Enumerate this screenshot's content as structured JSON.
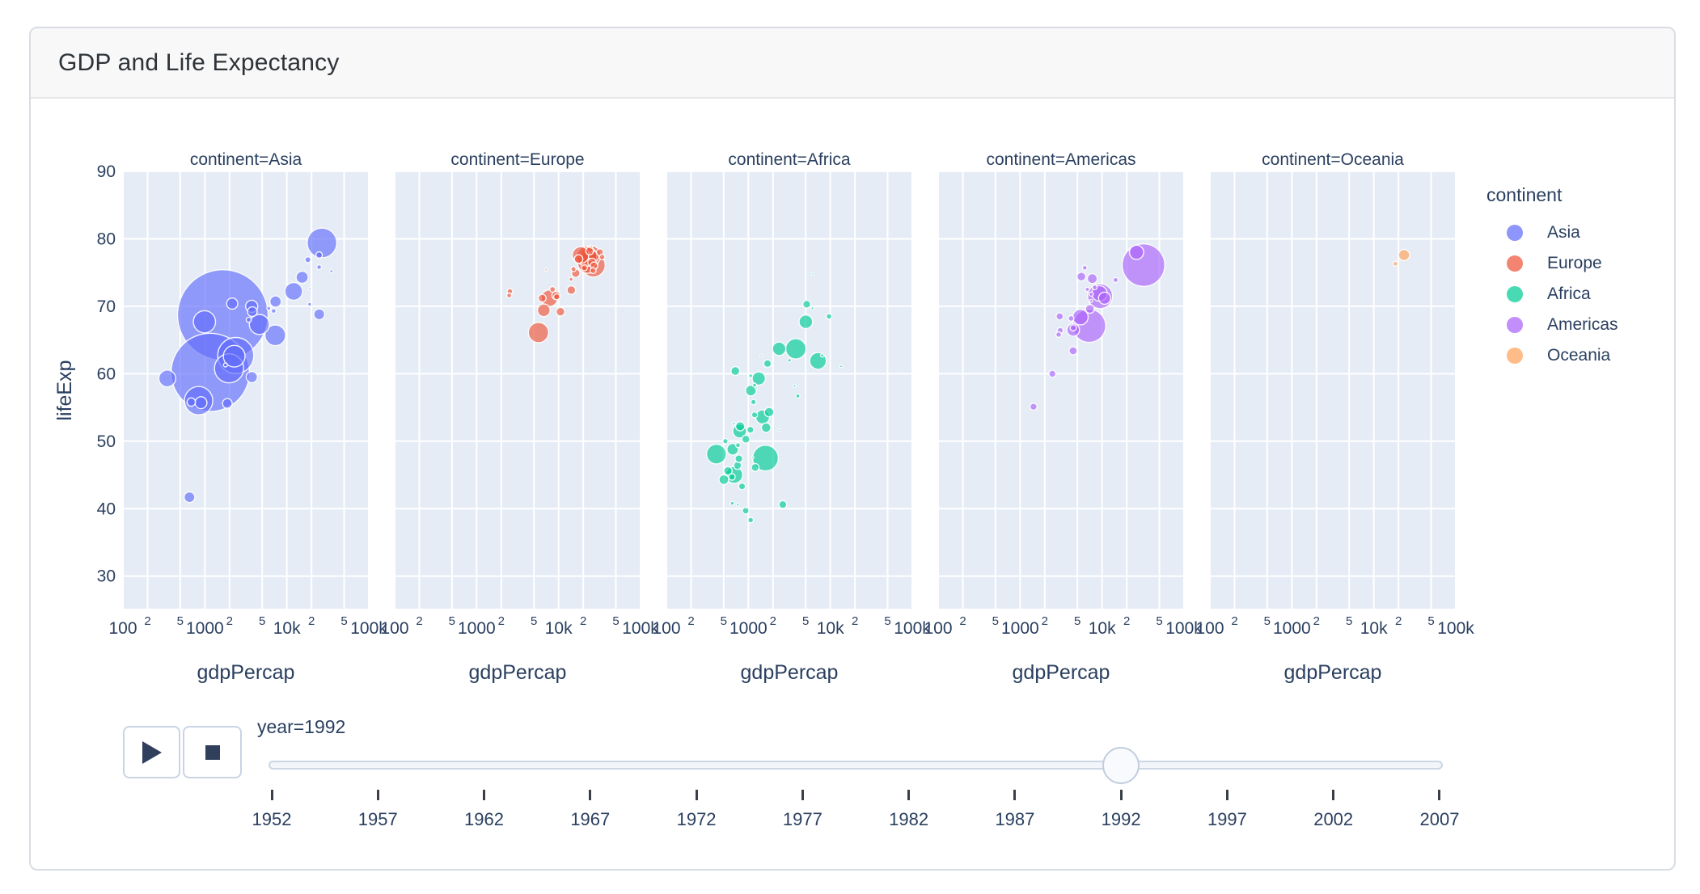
{
  "header": {
    "title": "GDP and Life Expectancy"
  },
  "legend": {
    "title": "continent",
    "items": [
      {
        "label": "Asia",
        "color": "#636EFA"
      },
      {
        "label": "Europe",
        "color": "#EF553B"
      },
      {
        "label": "Africa",
        "color": "#00CC96"
      },
      {
        "label": "Americas",
        "color": "#AB63FA"
      },
      {
        "label": "Oceania",
        "color": "#FFA15A"
      }
    ]
  },
  "controls": {
    "play_icon": "play-icon",
    "stop_icon": "stop-icon"
  },
  "slider": {
    "current_label": "year=1992",
    "current_year": 1992,
    "years": [
      1952,
      1957,
      1962,
      1967,
      1972,
      1977,
      1982,
      1987,
      1992,
      1997,
      2002,
      2007
    ]
  },
  "chart_data": {
    "type": "scatter",
    "title": "GDP and Life Expectancy",
    "frame_label": "year=1992",
    "facet_by": "continent",
    "size_by": "pop_millions",
    "x_label": "gdpPercap",
    "y_label": "lifeExp",
    "x_scale": "log",
    "x_range": [
      100,
      100000
    ],
    "y_range": [
      25,
      90
    ],
    "y_ticks": [
      30,
      40,
      50,
      60,
      70,
      80,
      90
    ],
    "x_ticks_major": [
      {
        "v": 100,
        "label": "100"
      },
      {
        "v": 1000,
        "label": "1000"
      },
      {
        "v": 10000,
        "label": "10k"
      },
      {
        "v": 100000,
        "label": "100k"
      }
    ],
    "x_ticks_minor": [
      {
        "v": 200,
        "label": "2"
      },
      {
        "v": 500,
        "label": "5"
      },
      {
        "v": 2000,
        "label": "2"
      },
      {
        "v": 5000,
        "label": "5"
      },
      {
        "v": 20000,
        "label": "2"
      },
      {
        "v": 50000,
        "label": "5"
      }
    ],
    "gridlines_x": [
      100,
      200,
      500,
      1000,
      2000,
      5000,
      10000,
      20000,
      50000,
      100000
    ],
    "grid": true,
    "legend_position": "right",
    "facets": [
      {
        "title": "continent=Asia",
        "series": "Asia"
      },
      {
        "title": "continent=Europe",
        "series": "Europe"
      },
      {
        "title": "continent=Africa",
        "series": "Africa"
      },
      {
        "title": "continent=Americas",
        "series": "Americas"
      },
      {
        "title": "continent=Oceania",
        "series": "Oceania"
      }
    ],
    "point_format": [
      "gdpPercap",
      "lifeExp",
      "pop_millions"
    ],
    "series": [
      {
        "name": "Asia",
        "color": "#636EFA",
        "points": [
          [
            649,
            41.7,
            16.3
          ],
          [
            19036,
            72.6,
            0.5
          ],
          [
            838,
            56.0,
            113.7
          ],
          [
            682,
            55.8,
            10.2
          ],
          [
            1656,
            68.7,
            1165.0
          ],
          [
            24757,
            77.6,
            5.8
          ],
          [
            1164,
            60.2,
            872.0
          ],
          [
            2383,
            62.7,
            184.8
          ],
          [
            7235,
            65.7,
            60.4
          ],
          [
            3745,
            59.5,
            17.9
          ],
          [
            18051,
            76.9,
            4.9
          ],
          [
            26825,
            79.4,
            124.3
          ],
          [
            3431,
            68.0,
            3.9
          ],
          [
            3726,
            70.0,
            20.7
          ],
          [
            12104,
            72.2,
            43.8
          ],
          [
            34933,
            75.2,
            1.4
          ],
          [
            6890,
            69.3,
            3.2
          ],
          [
            7277,
            70.7,
            18.3
          ],
          [
            1785,
            61.3,
            2.3
          ],
          [
            347,
            59.3,
            40.5
          ],
          [
            897,
            55.7,
            20.3
          ],
          [
            18955,
            70.3,
            1.9
          ],
          [
            1972,
            60.8,
            120.1
          ],
          [
            2280,
            62.6,
            67.2
          ],
          [
            24824,
            68.8,
            16.9
          ],
          [
            24770,
            75.8,
            3.2
          ],
          [
            2154,
            70.4,
            17.6
          ],
          [
            3795,
            69.2,
            13.2
          ],
          [
            15363,
            74.3,
            20.7
          ],
          [
            4617,
            67.3,
            56.7
          ],
          [
            989,
            67.7,
            69.9
          ],
          [
            6017,
            69.7,
            2.1
          ],
          [
            1879,
            55.6,
            13.4
          ]
        ]
      },
      {
        "name": "Europe",
        "color": "#EF553B",
        "points": [
          [
            2497,
            71.6,
            3.3
          ],
          [
            27042,
            76.0,
            7.9
          ],
          [
            25576,
            76.5,
            10.0
          ],
          [
            2547,
            72.2,
            4.3
          ],
          [
            6303,
            71.2,
            8.7
          ],
          [
            8448,
            72.5,
            4.5
          ],
          [
            14297,
            72.4,
            10.3
          ],
          [
            26407,
            75.3,
            5.2
          ],
          [
            20647,
            75.7,
            5.0
          ],
          [
            24704,
            77.5,
            57.4
          ],
          [
            26505,
            76.1,
            80.6
          ],
          [
            17541,
            77.0,
            10.3
          ],
          [
            10536,
            69.2,
            10.3
          ],
          [
            25144,
            78.8,
            0.3
          ],
          [
            15215,
            75.5,
            3.6
          ],
          [
            22014,
            77.4,
            56.8
          ],
          [
            7003,
            75.4,
            0.6
          ],
          [
            26791,
            77.4,
            15.2
          ],
          [
            33965,
            77.3,
            4.3
          ],
          [
            7739,
            71.2,
            38.4
          ],
          [
            16207,
            74.9,
            9.9
          ],
          [
            6598,
            69.4,
            22.8
          ],
          [
            9325,
            71.6,
            9.8
          ],
          [
            9498,
            71.4,
            5.3
          ],
          [
            14214,
            74.0,
            2.0
          ],
          [
            18603,
            77.6,
            39.5
          ],
          [
            23880,
            78.2,
            8.7
          ],
          [
            31871,
            78.0,
            6.9
          ],
          [
            5678,
            66.1,
            58.2
          ],
          [
            22705,
            76.4,
            57.9
          ]
        ]
      },
      {
        "name": "Africa",
        "color": "#00CC96",
        "points": [
          [
            5023,
            67.7,
            26.3
          ],
          [
            2628,
            40.6,
            8.7
          ],
          [
            1191,
            53.9,
            5.0
          ],
          [
            7954,
            62.7,
            1.3
          ],
          [
            931,
            50.3,
            8.9
          ],
          [
            632,
            44.7,
            5.8
          ],
          [
            1793,
            54.3,
            12.5
          ],
          [
            747,
            49.4,
            3.3
          ],
          [
            1058,
            51.7,
            6.6
          ],
          [
            1246,
            57.9,
            0.5
          ],
          [
            672,
            45.0,
            41.3
          ],
          [
            4016,
            56.7,
            2.4
          ],
          [
            1648,
            52.0,
            12.8
          ],
          [
            2377,
            51.6,
            0.4
          ],
          [
            3794,
            63.7,
            59.4
          ],
          [
            1132,
            47.6,
            0.4
          ],
          [
            525,
            50.0,
            3.7
          ],
          [
            407,
            48.1,
            55.1
          ],
          [
            13522,
            61.1,
            1.0
          ],
          [
            665,
            52.6,
            1.0
          ],
          [
            1071,
            57.5,
            16.3
          ],
          [
            837,
            43.3,
            6.4
          ],
          [
            745,
            40.6,
            1.1
          ],
          [
            1341,
            59.3,
            25.0
          ],
          [
            1068,
            59.7,
            1.8
          ],
          [
            637,
            40.8,
            1.9
          ],
          [
            9640,
            68.5,
            4.4
          ],
          [
            795,
            52.2,
            12.2
          ],
          [
            563,
            45.6,
            10.0
          ],
          [
            739,
            46.4,
            8.4
          ],
          [
            1191,
            58.3,
            2.1
          ],
          [
            6058,
            69.7,
            1.1
          ],
          [
            2377,
            63.7,
            25.8
          ],
          [
            502,
            44.3,
            13.2
          ],
          [
            3173,
            62.0,
            1.6
          ],
          [
            766,
            47.4,
            8.3
          ],
          [
            1619,
            47.5,
            93.4
          ],
          [
            6101,
            74.8,
            0.7
          ],
          [
            1429,
            62.7,
            0.1
          ],
          [
            1712,
            61.5,
            8.1
          ],
          [
            1068,
            38.3,
            4.3
          ],
          [
            927,
            39.7,
            6.1
          ],
          [
            7062,
            61.9,
            39.3
          ],
          [
            1492,
            53.6,
            28.2
          ],
          [
            3675,
            58.2,
            1.0
          ],
          [
            781,
            51.5,
            26.6
          ],
          [
            1153,
            55.8,
            3.9
          ],
          [
            5160,
            70.3,
            8.6
          ],
          [
            644,
            48.8,
            18.7
          ],
          [
            1210,
            46.1,
            8.4
          ],
          [
            693,
            60.4,
            10.7
          ]
        ]
      },
      {
        "name": "Americas",
        "color": "#AB63FA",
        "points": [
          [
            9308,
            71.9,
            33.9
          ],
          [
            2474,
            60.0,
            7.0
          ],
          [
            6950,
            67.1,
            156.0
          ],
          [
            26343,
            78.0,
            28.5
          ],
          [
            7596,
            74.1,
            13.6
          ],
          [
            5444,
            68.4,
            34.2
          ],
          [
            6160,
            75.7,
            3.2
          ],
          [
            5592,
            74.4,
            10.7
          ],
          [
            3044,
            68.5,
            7.3
          ],
          [
            7103,
            69.6,
            10.7
          ],
          [
            4444,
            66.8,
            5.3
          ],
          [
            4439,
            63.4,
            9.3
          ],
          [
            1456,
            55.1,
            6.9
          ],
          [
            3081,
            66.4,
            5.1
          ],
          [
            7404,
            71.8,
            2.4
          ],
          [
            9472,
            71.5,
            88.1
          ],
          [
            2955,
            65.8,
            4.2
          ],
          [
            6618,
            72.5,
            2.5
          ],
          [
            4196,
            68.2,
            4.5
          ],
          [
            4446,
            66.5,
            22.4
          ],
          [
            14641,
            73.9,
            3.6
          ],
          [
            7370,
            70.8,
            1.2
          ],
          [
            32003,
            76.1,
            256.9
          ],
          [
            8137,
            72.8,
            3.1
          ],
          [
            10733,
            71.2,
            20.7
          ]
        ]
      },
      {
        "name": "Oceania",
        "color": "#FFA15A",
        "points": [
          [
            23425,
            77.6,
            17.5
          ],
          [
            18363,
            76.3,
            3.4
          ]
        ]
      }
    ]
  }
}
